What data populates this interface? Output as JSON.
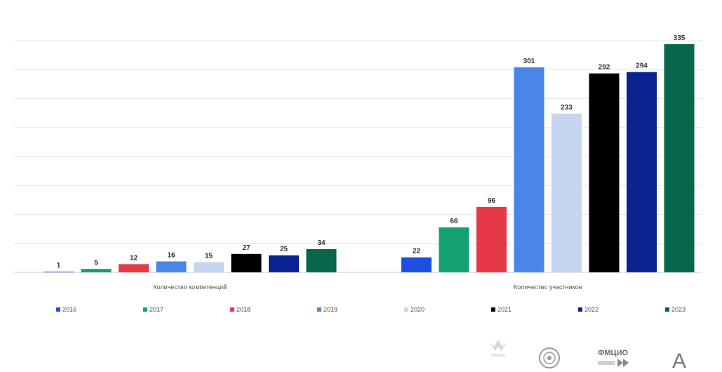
{
  "chart_data": {
    "type": "bar",
    "categories": [
      "Количество компетенций",
      "Количество участников"
    ],
    "ylim": [
      0,
      340
    ],
    "grid": true,
    "legend_position": "bottom",
    "series": [
      {
        "name": "2016",
        "color": "#1f4fe0",
        "values": [
          1,
          22
        ]
      },
      {
        "name": "2017",
        "color": "#15a074",
        "values": [
          5,
          66
        ]
      },
      {
        "name": "2018",
        "color": "#e53945",
        "values": [
          12,
          96
        ]
      },
      {
        "name": "2019",
        "color": "#4a86e8",
        "values": [
          16,
          301
        ]
      },
      {
        "name": "2020",
        "color": "#c6d6f0",
        "values": [
          15,
          233
        ]
      },
      {
        "name": "2021",
        "color": "#000000",
        "values": [
          27,
          292
        ]
      },
      {
        "name": "2022",
        "color": "#0b2391",
        "values": [
          25,
          294
        ]
      },
      {
        "name": "2023",
        "color": "#07664b",
        "values": [
          34,
          335
        ]
      }
    ]
  },
  "logos": {
    "fmcio_text": "ФМЦИО",
    "letter_a": "A"
  }
}
